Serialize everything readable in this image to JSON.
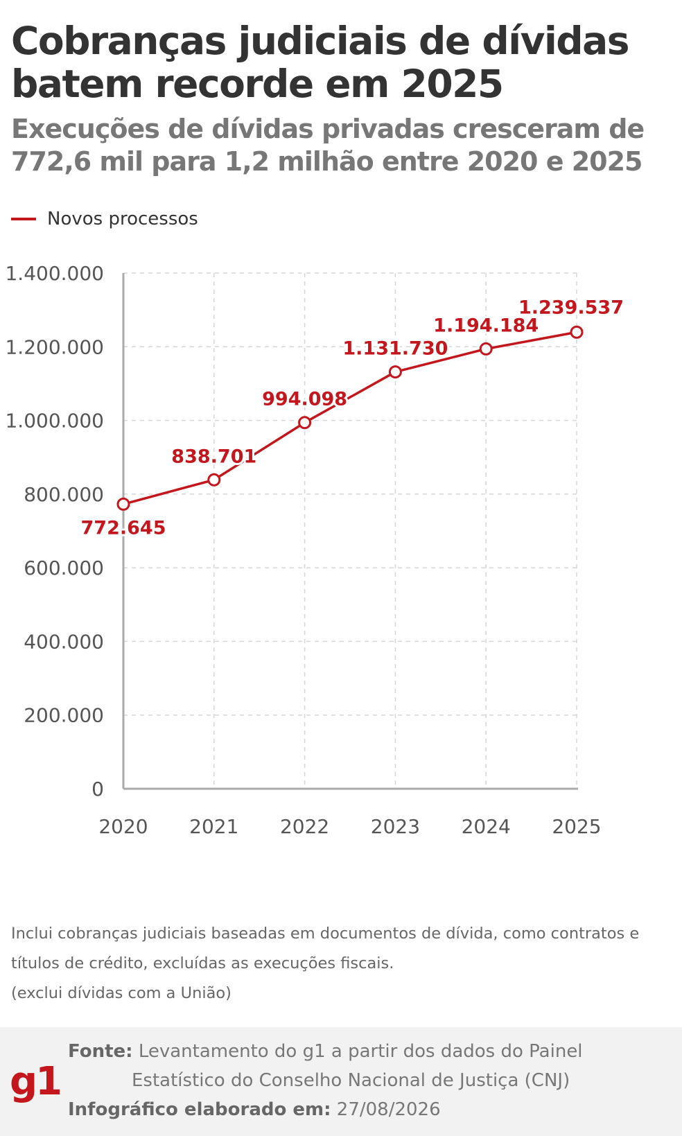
{
  "title": "Cobranças judiciais de dívidas batem recorde em 2025",
  "subtitle": "Execuções de dívidas privadas cresceram de 772,6 mil para 1,2 milhão entre 2020 e 2025",
  "legend": {
    "label": "Novos processos",
    "color": "#c4171d"
  },
  "chart_data": {
    "type": "line",
    "x": [
      "2020",
      "2021",
      "2022",
      "2023",
      "2024",
      "2025"
    ],
    "series": [
      {
        "name": "Novos processos",
        "values": [
          772645,
          838701,
          994098,
          1131730,
          1194184,
          1239537
        ],
        "labels": [
          "772.645",
          "838.701",
          "994.098",
          "1.131.730",
          "1.194.184",
          "1.239.537"
        ]
      }
    ],
    "ylim": [
      0,
      1400000
    ],
    "yticks": [
      0,
      200000,
      400000,
      600000,
      800000,
      1000000,
      1200000,
      1400000
    ],
    "ytick_labels": [
      "0",
      "200.000",
      "400.000",
      "600.000",
      "800.000",
      "1.000.000",
      "1.200.000",
      "1.400.000"
    ],
    "grid": true,
    "legend_position": "top-left",
    "line_color": "#c4171d"
  },
  "note": {
    "line1": "Inclui cobranças judiciais baseadas em documentos de dívida, como contratos e títulos de crédito, excluídas as execuções fiscais.",
    "line2": "(exclui dívidas com a União)"
  },
  "footer": {
    "logo": "g1",
    "source_label": "Fonte:",
    "source_line1": "Levantamento do g1 a partir dos dados do Painel",
    "source_line2": "Estatístico do Conselho Nacional de Justiça (CNJ)",
    "date_label": "Infográfico elaborado em:",
    "date_value": "27/08/2026"
  }
}
